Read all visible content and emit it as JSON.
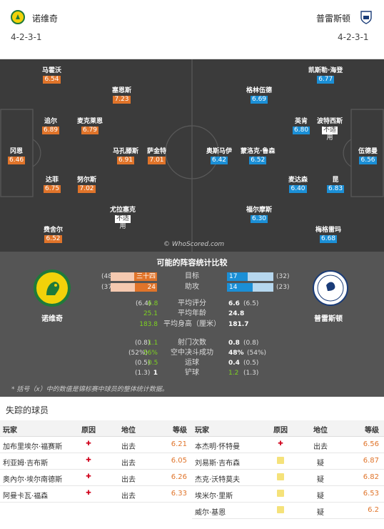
{
  "header": {
    "home_name": "诺维奇",
    "away_name": "普雷斯顿",
    "home_formation": "4-2-3-1",
    "away_formation": "4-2-3-1"
  },
  "home_players": [
    {
      "name": "马霍沃",
      "rating": "6.54",
      "style": "o"
    },
    {
      "name": "塞恩斯",
      "rating": "7.23",
      "style": "o"
    },
    {
      "name": "追尔",
      "rating": "6.89",
      "style": "o"
    },
    {
      "name": "麦克莱恩",
      "rating": "6.79",
      "style": "o"
    },
    {
      "name": "冈恩",
      "rating": "6.46",
      "style": "o"
    },
    {
      "name": "马孔滕斯",
      "rating": "6.91",
      "style": "o"
    },
    {
      "name": "萨金特",
      "rating": "7.01",
      "style": "o"
    },
    {
      "name": "达菲",
      "rating": "6.75",
      "style": "o"
    },
    {
      "name": "努尔斯",
      "rating": "7.02",
      "style": "o"
    },
    {
      "name": "尤拉塞克",
      "rating": "不适",
      "style": "w",
      "sub": "用"
    },
    {
      "name": "费舍尔",
      "rating": "6.52",
      "style": "o"
    }
  ],
  "away_players": [
    {
      "name": "凯斯勒·海登",
      "rating": "6.77",
      "style": "b"
    },
    {
      "name": "格林伍德",
      "rating": "6.69",
      "style": "b"
    },
    {
      "name": "英肯",
      "rating": "6.80",
      "style": "b"
    },
    {
      "name": "波特西斯",
      "rating": "不适",
      "style": "w",
      "sub": "用"
    },
    {
      "name": "伍德曼",
      "rating": "6.56",
      "style": "b"
    },
    {
      "name": "奥斯马伊",
      "rating": "6.42",
      "style": "b"
    },
    {
      "name": "蒙洛克·鲁森",
      "rating": "6.52",
      "style": "b"
    },
    {
      "name": "麦达森",
      "rating": "6.40",
      "style": "b"
    },
    {
      "name": "昆",
      "rating": "6.83",
      "style": "b"
    },
    {
      "name": "福尔摩斯",
      "rating": "6.30",
      "style": "b"
    },
    {
      "name": "梅格雷玛",
      "rating": "6.68",
      "style": "b"
    }
  ],
  "watermark": "© WhoScored.com",
  "stats": {
    "title": "可能的阵容统计比较",
    "home_name": "诺维奇",
    "away_name": "普雷斯顿",
    "bars": [
      {
        "label": "目标",
        "home": "三十四",
        "home_rank": "(48)",
        "away": "17",
        "away_rank": "(32)",
        "home_frac": 0.5,
        "away_frac": 0.45
      },
      {
        "label": "助攻",
        "home": "24",
        "home_rank": "(37)",
        "away": "14",
        "away_rank": "(23)",
        "home_frac": 0.48,
        "away_frac": 0.55
      }
    ],
    "rows": [
      {
        "label": "平均评分",
        "home_pre": "(6.4)",
        "home": "6.8",
        "away": "6.6",
        "away_post": "(6.5)"
      },
      {
        "label": "平均年龄",
        "home_pre": "",
        "home": "25.1",
        "away": "24.8",
        "away_post": ""
      },
      {
        "label": "平均身高（厘米）",
        "home_pre": "",
        "home": "183.8",
        "away": "181.7",
        "away_post": ""
      },
      {
        "label": "射门次数",
        "home_pre": "(0.8)",
        "home": "1.1",
        "away": "0.8",
        "away_post": "(0.8)"
      },
      {
        "label": "空中决斗成功",
        "home_pre": "(52%)",
        "home": "56%",
        "away": "48%",
        "away_post": "(54%)"
      },
      {
        "label": "运球",
        "home_pre": "(0.5)",
        "home": "0.5",
        "away": "0.4",
        "away_post": "(0.5)"
      },
      {
        "label": "铲球",
        "home_pre": "(1.3)",
        "home": "1",
        "away": "1.2",
        "away_post": "(1.3)"
      }
    ],
    "note": "* 括号（x）中的数值是锦标赛中球员的整体统计数据。"
  },
  "missing": {
    "title": "失踪的球员",
    "headers": [
      "玩家",
      "原因",
      "地位",
      "等级"
    ],
    "home": [
      {
        "player": "加布里埃尔·福赛斯",
        "reason": "injury",
        "status": "出去",
        "rating": "6.21"
      },
      {
        "player": "利亚姆·吉布斯",
        "reason": "injury",
        "status": "出去",
        "rating": "6.05"
      },
      {
        "player": "奥內尔·埃尔南德斯",
        "reason": "injury",
        "status": "出去",
        "rating": "6.26"
      },
      {
        "player": "阿曼卡瓦·福森",
        "reason": "injury",
        "status": "出去",
        "rating": "6.33"
      }
    ],
    "away": [
      {
        "player": "本杰明·怀特曼",
        "reason": "injury",
        "status": "出去",
        "rating": "6.56"
      },
      {
        "player": "刘易斯·吉布森",
        "reason": "doubt",
        "status": "疑",
        "rating": "6.87"
      },
      {
        "player": "杰克·沃特莫夫",
        "reason": "doubt",
        "status": "疑",
        "rating": "6.82"
      },
      {
        "player": "埃米尔·里斯",
        "reason": "doubt",
        "status": "疑",
        "rating": "6.53"
      },
      {
        "player": "威尔·基恩",
        "reason": "doubt",
        "status": "疑",
        "rating": "6.2"
      }
    ]
  }
}
